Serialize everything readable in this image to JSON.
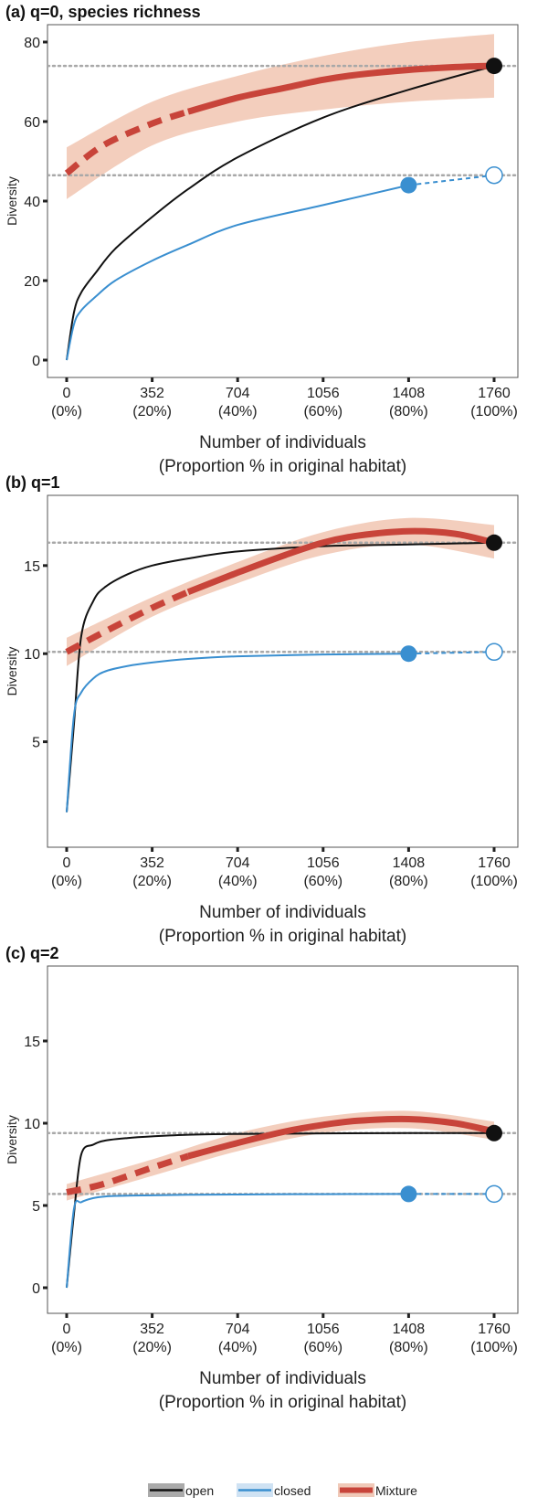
{
  "chart_data": [
    {
      "type": "line",
      "panel": "(a)",
      "title": "q=0, species richness",
      "ylabel": "Diversity",
      "xlabel_line1": "Number of individuals",
      "xlabel_line2": "(Proportion % in original habitat)",
      "xlim": [
        0,
        1760
      ],
      "ylim": [
        0,
        80
      ],
      "yticks": [
        0,
        20,
        40,
        60,
        80
      ],
      "xticks": [
        0,
        352,
        704,
        1056,
        1408,
        1760
      ],
      "xtick_labels": [
        "0",
        "352",
        "704",
        "1056",
        "1408",
        "1760"
      ],
      "xtick_sublabels": [
        "(0%)",
        "(20%)",
        "(40%)",
        "(60%)",
        "(80%)",
        "(100%)"
      ],
      "ref_lines": [
        74,
        46.5
      ],
      "series": [
        {
          "name": "open",
          "x": [
            0,
            30,
            60,
            120,
            200,
            352,
            500,
            704,
            1056,
            1408,
            1760
          ],
          "y": [
            0,
            12,
            17,
            22,
            28,
            36,
            43,
            51,
            61,
            68,
            74
          ]
        },
        {
          "name": "closed",
          "x": [
            0,
            30,
            60,
            120,
            200,
            352,
            500,
            704,
            1056,
            1408
          ],
          "y": [
            0,
            9,
            12.5,
            16,
            20,
            25,
            29,
            34,
            39,
            44
          ]
        },
        {
          "name": "closed (extrapolated)",
          "x": [
            1408,
            1760
          ],
          "y": [
            44,
            46.5
          ]
        },
        {
          "name": "Mixture",
          "x": [
            0,
            150,
            352,
            500,
            704,
            900,
            1056,
            1200,
            1408,
            1600,
            1760
          ],
          "y": [
            47,
            54,
            59.5,
            62.5,
            66,
            68.5,
            70.5,
            71.8,
            73,
            73.7,
            74
          ]
        },
        {
          "name": "Mixture band lower",
          "x": [
            0,
            352,
            704,
            1056,
            1408,
            1760
          ],
          "y": [
            40.5,
            54,
            60,
            63,
            65,
            66
          ]
        },
        {
          "name": "Mixture band upper",
          "x": [
            0,
            352,
            704,
            1056,
            1408,
            1760
          ],
          "y": [
            53.5,
            65,
            71.5,
            76.5,
            80,
            82
          ]
        }
      ],
      "points": [
        {
          "series": "open",
          "x": 1760,
          "y": 74,
          "style": "filled"
        },
        {
          "series": "closed",
          "x": 1408,
          "y": 44,
          "style": "filled"
        },
        {
          "series": "closed",
          "x": 1760,
          "y": 46.5,
          "style": "hollow"
        }
      ]
    },
    {
      "type": "line",
      "panel": "(b)",
      "title": "q=1",
      "ylabel": "Diversity",
      "xlabel_line1": "Number of individuals",
      "xlabel_line2": "(Proportion % in original habitat)",
      "xlim": [
        0,
        1760
      ],
      "ylim": [
        0,
        18
      ],
      "yticks": [
        5,
        10,
        15
      ],
      "xticks": [
        0,
        352,
        704,
        1056,
        1408,
        1760
      ],
      "xtick_labels": [
        "0",
        "352",
        "704",
        "1056",
        "1408",
        "1760"
      ],
      "xtick_sublabels": [
        "(0%)",
        "(20%)",
        "(40%)",
        "(60%)",
        "(80%)",
        "(100%)"
      ],
      "ref_lines": [
        16.3,
        10.1
      ],
      "series": [
        {
          "name": "open",
          "x": [
            0,
            30,
            60,
            110,
            160,
            250,
            352,
            500,
            704,
            1056,
            1408,
            1760
          ],
          "y": [
            1,
            6,
            11,
            13,
            13.8,
            14.5,
            15,
            15.4,
            15.8,
            16.1,
            16.2,
            16.3
          ]
        },
        {
          "name": "closed",
          "x": [
            0,
            30,
            60,
            110,
            160,
            250,
            352,
            500,
            704,
            1056,
            1408
          ],
          "y": [
            1,
            6.5,
            7.8,
            8.6,
            9,
            9.3,
            9.5,
            9.7,
            9.85,
            9.95,
            10
          ]
        },
        {
          "name": "closed (extrapolated)",
          "x": [
            1408,
            1760
          ],
          "y": [
            10,
            10.1
          ]
        },
        {
          "name": "Mixture",
          "x": [
            0,
            150,
            352,
            500,
            704,
            900,
            1056,
            1200,
            1408,
            1600,
            1760
          ],
          "y": [
            10.1,
            11.2,
            12.6,
            13.5,
            14.6,
            15.6,
            16.3,
            16.7,
            16.95,
            16.8,
            16.3
          ]
        },
        {
          "name": "Mixture band lower",
          "x": [
            0,
            352,
            704,
            1056,
            1408,
            1760
          ],
          "y": [
            9.3,
            12.1,
            14,
            15.6,
            16.2,
            15.4
          ]
        },
        {
          "name": "Mixture band upper",
          "x": [
            0,
            352,
            704,
            1056,
            1408,
            1760
          ],
          "y": [
            10.9,
            13.2,
            15.2,
            16.9,
            17.7,
            17.3
          ]
        }
      ],
      "points": [
        {
          "series": "open",
          "x": 1760,
          "y": 16.3,
          "style": "filled"
        },
        {
          "series": "closed",
          "x": 1408,
          "y": 10,
          "style": "filled"
        },
        {
          "series": "closed",
          "x": 1760,
          "y": 10.1,
          "style": "hollow"
        }
      ]
    },
    {
      "type": "line",
      "panel": "(c)",
      "title": "q=2",
      "ylabel": "Diversity",
      "xlabel_line1": "Number of individuals",
      "xlabel_line2": "(Proportion % in original habitat)",
      "xlim": [
        0,
        1760
      ],
      "ylim": [
        -0.5,
        18.5
      ],
      "yticks": [
        0,
        5,
        10,
        15
      ],
      "xticks": [
        0,
        352,
        704,
        1056,
        1408,
        1760
      ],
      "xtick_labels": [
        "0",
        "352",
        "704",
        "1056",
        "1408",
        "1760"
      ],
      "xtick_sublabels": [
        "(0%)",
        "(20%)",
        "(40%)",
        "(60%)",
        "(80%)",
        "(100%)"
      ],
      "ref_lines": [
        9.4,
        5.7
      ],
      "series": [
        {
          "name": "open",
          "x": [
            0,
            30,
            60,
            110,
            160,
            250,
            352,
            500,
            704,
            1056,
            1408,
            1760
          ],
          "y": [
            0,
            4.5,
            8.1,
            8.7,
            8.95,
            9.1,
            9.2,
            9.3,
            9.35,
            9.38,
            9.4,
            9.4
          ]
        },
        {
          "name": "closed",
          "x": [
            0,
            30,
            60,
            110,
            160,
            250,
            352,
            500,
            704,
            1056,
            1408
          ],
          "y": [
            0,
            4.8,
            5.2,
            5.45,
            5.55,
            5.6,
            5.62,
            5.65,
            5.67,
            5.69,
            5.7
          ]
        },
        {
          "name": "closed (extrapolated)",
          "x": [
            1408,
            1760
          ],
          "y": [
            5.7,
            5.7
          ]
        },
        {
          "name": "Mixture",
          "x": [
            0,
            150,
            352,
            500,
            704,
            900,
            1056,
            1200,
            1408,
            1600,
            1760
          ],
          "y": [
            5.8,
            6.3,
            7.3,
            8,
            8.8,
            9.5,
            9.9,
            10.15,
            10.25,
            10,
            9.5
          ]
        },
        {
          "name": "Mixture band lower",
          "x": [
            0,
            352,
            704,
            1056,
            1408,
            1760
          ],
          "y": [
            5.3,
            6.8,
            8.3,
            9.4,
            9.7,
            9
          ]
        },
        {
          "name": "Mixture band upper",
          "x": [
            0,
            352,
            704,
            1056,
            1408,
            1760
          ],
          "y": [
            6.3,
            7.8,
            9.4,
            10.4,
            10.75,
            10.1
          ]
        }
      ],
      "points": [
        {
          "series": "open",
          "x": 1760,
          "y": 9.4,
          "style": "filled"
        },
        {
          "series": "closed",
          "x": 1408,
          "y": 5.7,
          "style": "filled"
        },
        {
          "series": "closed",
          "x": 1760,
          "y": 5.7,
          "style": "hollow"
        }
      ]
    }
  ],
  "legend": {
    "placement": "bottom",
    "items": [
      {
        "name": "open",
        "label": "open",
        "color": "#111111",
        "band": "#aaaaaa"
      },
      {
        "name": "closed",
        "label": "closed",
        "color": "#3a8fd0",
        "band": "#cfe2f3"
      },
      {
        "name": "Mixture",
        "label": "Mixture",
        "color": "#c8443a",
        "band": "#f0c9b8"
      }
    ]
  },
  "colors": {
    "open": "#111111",
    "closed": "#3a8fd0",
    "mixture": "#c8443a",
    "mixture_band": "#f2c9b6",
    "ref_line": "#a8a8a8",
    "frame": "#555555"
  }
}
